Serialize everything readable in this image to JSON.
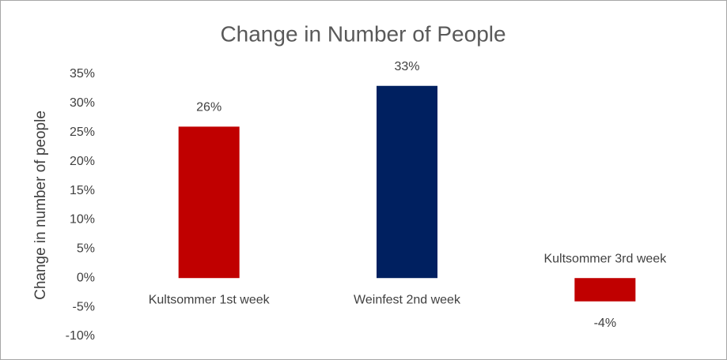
{
  "chart_data": {
    "type": "bar",
    "title": "Change in Number of People",
    "y_label": "Change in number of people",
    "categories": [
      "Kultsommer 1st week",
      "Weinfest 2nd week",
      "Kultsommer 3rd week"
    ],
    "values": [
      26,
      33,
      -4
    ],
    "value_labels": [
      "26%",
      "33%",
      "-4%"
    ],
    "colors": [
      "#c00000",
      "#002060",
      "#c00000"
    ],
    "ylim": [
      -10,
      35
    ],
    "yticks": [
      {
        "value": -10,
        "label": "-10%"
      },
      {
        "value": -5,
        "label": "-5%"
      },
      {
        "value": 0,
        "label": "0%"
      },
      {
        "value": 5,
        "label": "5%"
      },
      {
        "value": 10,
        "label": "10%"
      },
      {
        "value": 15,
        "label": "15%"
      },
      {
        "value": 20,
        "label": "20%"
      },
      {
        "value": 25,
        "label": "25%"
      },
      {
        "value": 30,
        "label": "30%"
      },
      {
        "value": 35,
        "label": "35%"
      }
    ],
    "grid": false
  }
}
